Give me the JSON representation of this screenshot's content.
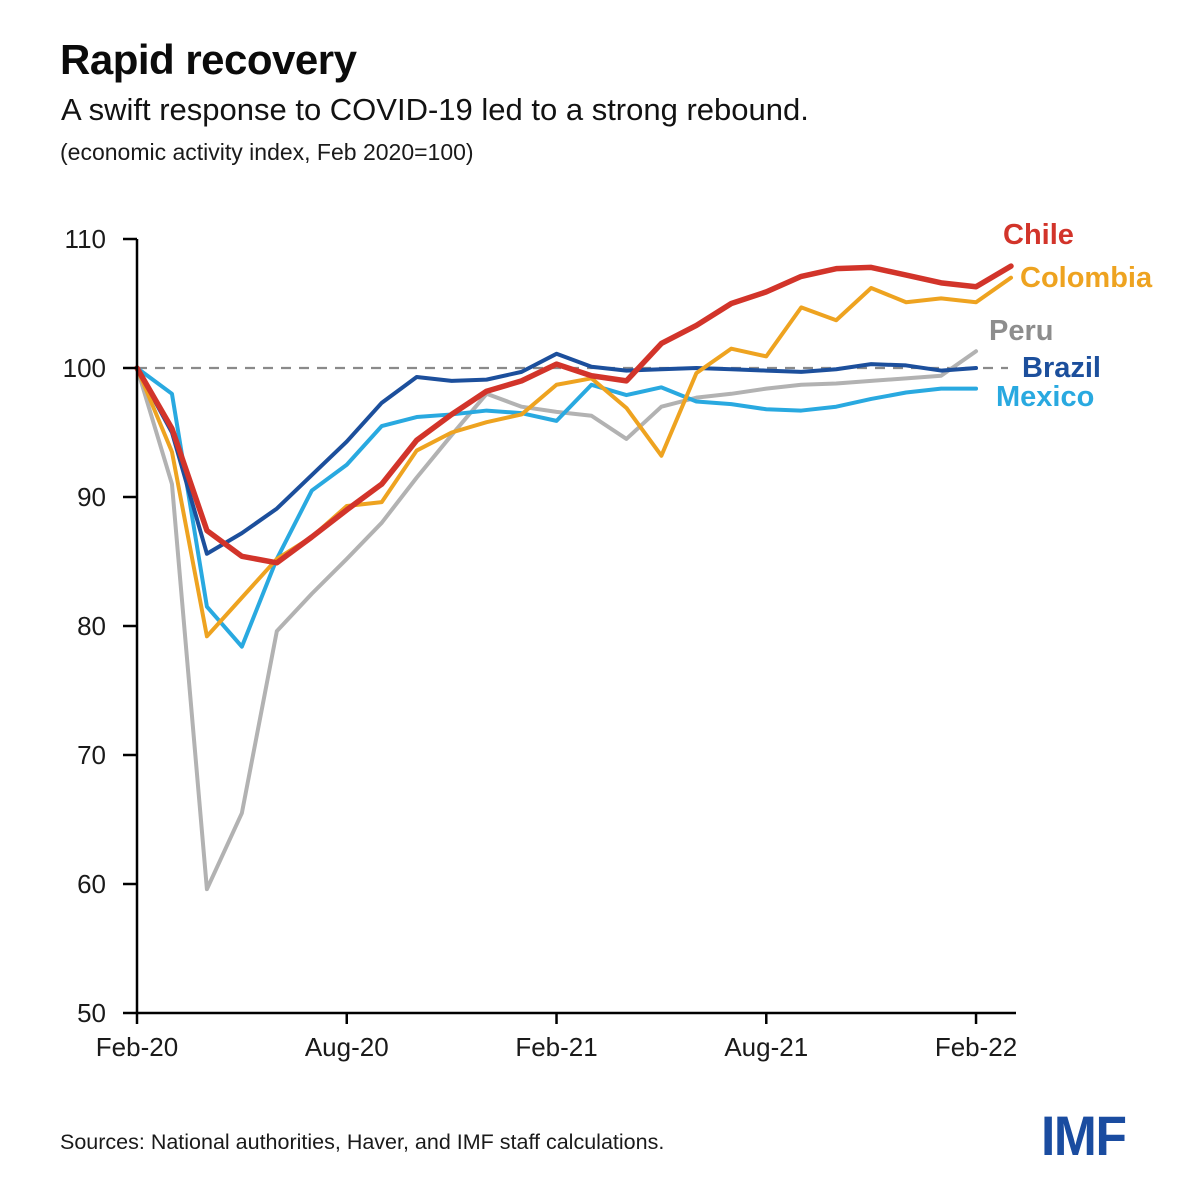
{
  "header": {
    "title": "Rapid recovery",
    "subtitle": "A swift response to COVID-19 led to a strong rebound.",
    "note": "(economic activity index, Feb 2020=100)"
  },
  "footer": {
    "sources": "Sources: National authorities, Haver, and IMF staff calculations.",
    "logo_text": "IMF",
    "logo_color": "#1A4CA0"
  },
  "colors": {
    "axis": "#000000",
    "tick_text": "#1a1a1a",
    "baseline_dash": "#8a8a8a"
  },
  "chart_data": {
    "type": "line",
    "title": "Rapid recovery",
    "subtitle": "A swift response to COVID-19 led to a strong rebound.",
    "ylabel": "(economic activity index, Feb 2020=100)",
    "ylim": [
      50,
      110
    ],
    "y_ticks": [
      50,
      60,
      70,
      80,
      90,
      100,
      110
    ],
    "grid": false,
    "baseline": {
      "value": 100,
      "style": "dashed"
    },
    "legend_position": "right-end-labels",
    "x": [
      "Feb-20",
      "Mar-20",
      "Apr-20",
      "May-20",
      "Jun-20",
      "Jul-20",
      "Aug-20",
      "Sep-20",
      "Oct-20",
      "Nov-20",
      "Dec-20",
      "Jan-21",
      "Feb-21",
      "Mar-21",
      "Apr-21",
      "May-21",
      "Jun-21",
      "Jul-21",
      "Aug-21",
      "Sep-21",
      "Oct-21",
      "Nov-21",
      "Dec-21",
      "Jan-22",
      "Feb-22",
      "Mar-22"
    ],
    "x_tick_labels": [
      "Feb-20",
      "Aug-20",
      "Feb-21",
      "Aug-21",
      "Feb-22"
    ],
    "x_tick_indices": [
      0,
      6,
      12,
      18,
      24
    ],
    "series": [
      {
        "name": "Peru",
        "color": "#B2B2B2",
        "label_color": "#8D8D8D",
        "width": 4,
        "values": [
          100,
          91.0,
          59.6,
          65.5,
          79.6,
          82.5,
          85.2,
          88.0,
          91.5,
          94.8,
          98.0,
          97.0,
          96.6,
          96.3,
          94.5,
          97.0,
          97.7,
          98.0,
          98.4,
          98.7,
          98.8,
          99.0,
          99.2,
          99.4,
          101.3,
          null
        ]
      },
      {
        "name": "Mexico",
        "color": "#29A9E0",
        "label_color": "#29A9E0",
        "width": 4,
        "values": [
          100,
          98.0,
          81.5,
          78.4,
          85.2,
          90.5,
          92.5,
          95.5,
          96.2,
          96.4,
          96.7,
          96.5,
          95.9,
          98.7,
          97.9,
          98.5,
          97.4,
          97.2,
          96.8,
          96.7,
          97.0,
          97.6,
          98.1,
          98.4,
          98.4,
          null
        ]
      },
      {
        "name": "Brazil",
        "color": "#1C4F9C",
        "label_color": "#1C4F9C",
        "width": 4,
        "values": [
          100,
          95.0,
          85.6,
          87.2,
          89.1,
          91.7,
          94.3,
          97.3,
          99.3,
          99.0,
          99.1,
          99.7,
          101.1,
          100.1,
          99.8,
          99.9,
          100.0,
          99.9,
          99.8,
          99.7,
          99.9,
          100.3,
          100.2,
          99.8,
          100.0,
          null
        ]
      },
      {
        "name": "Colombia",
        "color": "#EEA320",
        "label_color": "#EEA320",
        "width": 4,
        "values": [
          100,
          93.5,
          79.2,
          82.2,
          85.2,
          86.9,
          89.3,
          89.6,
          93.6,
          95.0,
          95.8,
          96.4,
          98.7,
          99.2,
          96.9,
          93.2,
          99.6,
          101.5,
          100.9,
          104.7,
          103.7,
          106.2,
          105.1,
          105.4,
          105.1,
          107.0
        ]
      },
      {
        "name": "Chile",
        "color": "#D2342A",
        "label_color": "#D2342A",
        "width": 5.5,
        "values": [
          100,
          95.3,
          87.4,
          85.4,
          84.9,
          86.9,
          89.0,
          91.0,
          94.4,
          96.4,
          98.2,
          99.0,
          100.3,
          99.4,
          99.0,
          101.9,
          103.3,
          105.0,
          105.9,
          107.1,
          107.7,
          107.8,
          107.2,
          106.6,
          106.3,
          107.9
        ]
      }
    ]
  }
}
